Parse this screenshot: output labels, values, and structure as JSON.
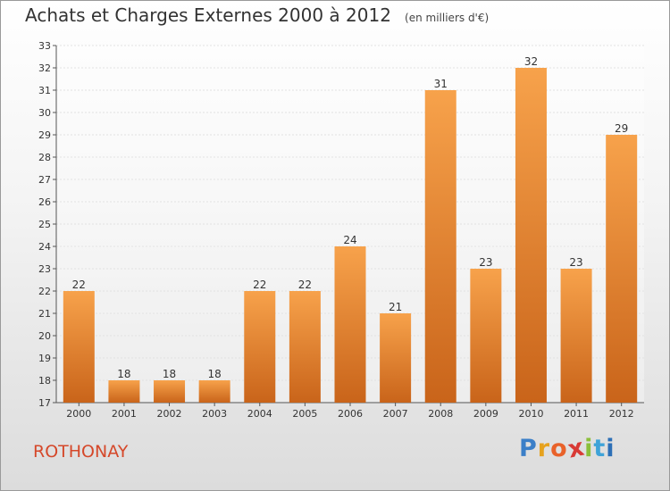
{
  "header": {
    "title": "Achats et Charges Externes 2000 à 2012",
    "unit": "(en milliers d'€)"
  },
  "footer": {
    "location": "ROTHONAY",
    "logo_letters": [
      "P",
      "r",
      "o",
      "x",
      "i",
      "t",
      "i"
    ],
    "logo_colors": [
      "#3b7fc8",
      "#e6a21e",
      "#e9622a",
      "#d83a35",
      "#8bbf3a",
      "#3fa3d8",
      "#2d6fb6"
    ]
  },
  "colors": {
    "bar_top": "#f7a24b",
    "bar_bottom": "#c9641a",
    "title": "#333333",
    "location": "#d5482a"
  },
  "chart_data": {
    "type": "bar",
    "title": "Achats et Charges Externes 2000 à 2012",
    "subtitle": "(en milliers d'€)",
    "xlabel": "",
    "ylabel": "",
    "categories": [
      "2000",
      "2001",
      "2002",
      "2003",
      "2004",
      "2005",
      "2006",
      "2007",
      "2008",
      "2009",
      "2010",
      "2011",
      "2012"
    ],
    "values": [
      22,
      18,
      18,
      18,
      22,
      22,
      24,
      21,
      31,
      23,
      32,
      23,
      29
    ],
    "ylim": [
      17,
      33
    ],
    "yticks": [
      17,
      18,
      19,
      20,
      21,
      22,
      23,
      24,
      25,
      26,
      27,
      28,
      29,
      30,
      31,
      32,
      33
    ],
    "grid": true,
    "legend": "none"
  }
}
